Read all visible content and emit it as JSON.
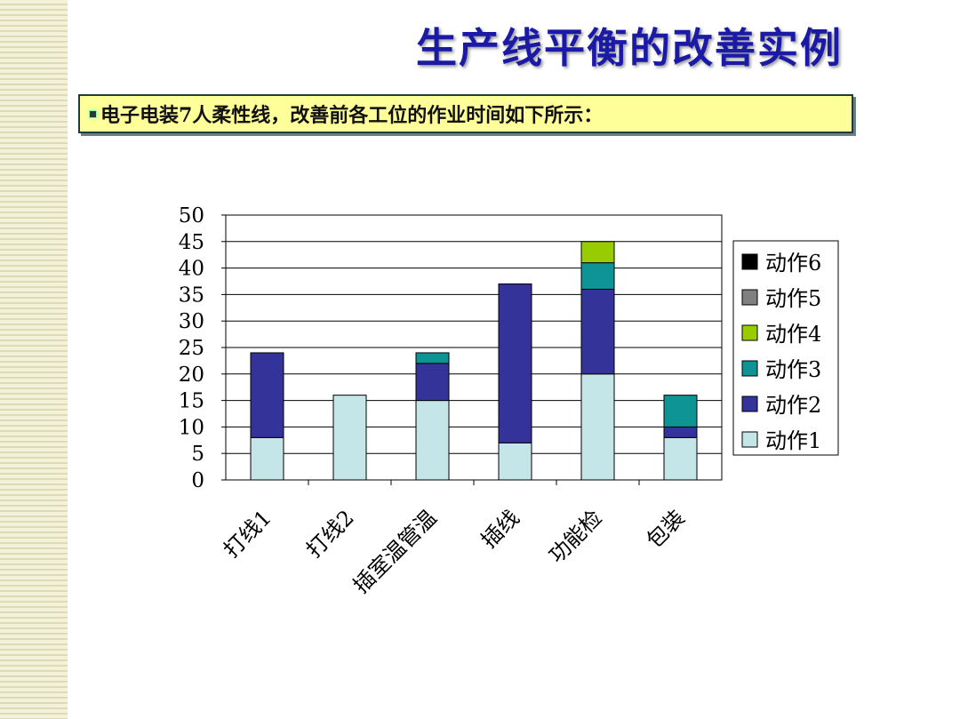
{
  "slide": {
    "title": "生产线平衡的改善实例",
    "subtitle": "电子电装7人柔性线，改善前各工位的作业时间如下所示："
  },
  "chart_data": {
    "type": "bar",
    "stacked": true,
    "categories": [
      "打线1",
      "打线2",
      "插室温管温",
      "插线",
      "功能检",
      "包装"
    ],
    "series": [
      {
        "name": "动作1",
        "color": "#c4e6e9",
        "values": [
          8,
          16,
          15,
          7,
          20,
          8
        ]
      },
      {
        "name": "动作2",
        "color": "#333399",
        "values": [
          16,
          0,
          7,
          30,
          16,
          2
        ]
      },
      {
        "name": "动作3",
        "color": "#0f9496",
        "values": [
          0,
          0,
          2,
          0,
          5,
          6
        ]
      },
      {
        "name": "动作4",
        "color": "#99cc00",
        "values": [
          0,
          0,
          0,
          0,
          4,
          0
        ]
      },
      {
        "name": "动作5",
        "color": "#808080",
        "values": [
          0,
          0,
          0,
          0,
          0,
          0
        ]
      },
      {
        "name": "动作6",
        "color": "#000000",
        "values": [
          0,
          0,
          0,
          0,
          0,
          0
        ]
      }
    ],
    "ylim": [
      0,
      50
    ],
    "yticks": [
      "0",
      "5",
      "10",
      "15",
      "20",
      "25",
      "30",
      "35",
      "40",
      "45",
      "50"
    ],
    "grid": true,
    "legend_position": "right"
  }
}
